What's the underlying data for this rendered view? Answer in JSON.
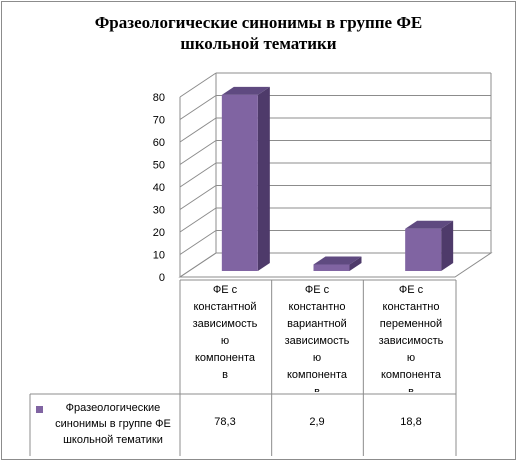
{
  "chart_data": {
    "type": "bar",
    "title": "Фразеологические синонимы в группе ФЕ школьной тематики",
    "title_lines": [
      "Фразеологические синонимы в группе ФЕ",
      "школьной тематики"
    ],
    "categories": [
      "ФЕ с константной зависимостью компонентов",
      "ФЕ с константно вариантной зависимостью компонентов",
      "ФЕ с константно переменной зависимостью компонентов"
    ],
    "category_lines": [
      [
        "ФЕ с",
        "константной",
        "зависимость",
        "ю",
        "компонента",
        "в"
      ],
      [
        "ФЕ с",
        "константно",
        "вариантной",
        "зависимость",
        "ю",
        "компонента",
        "в"
      ],
      [
        "ФЕ с",
        "константно",
        "переменной",
        "зависимость",
        "ю",
        "компонента",
        "в"
      ]
    ],
    "series": [
      {
        "name": "Фразеологические синонимы в группе ФЕ школьной тематики",
        "name_lines": [
          "Фразеологические",
          "синонимы в группе ФЕ",
          "школьной тематики"
        ],
        "values": [
          78.3,
          2.9,
          18.8
        ],
        "value_labels": [
          "78,3",
          "2,9",
          "18,8"
        ],
        "color": "#8064a2"
      }
    ],
    "yticks": [
      "0",
      "10",
      "20",
      "30",
      "40",
      "50",
      "60",
      "70",
      "80"
    ],
    "ylim": [
      0,
      80
    ],
    "grid": true,
    "legend": "data-table",
    "xlabel": "",
    "ylabel": ""
  }
}
